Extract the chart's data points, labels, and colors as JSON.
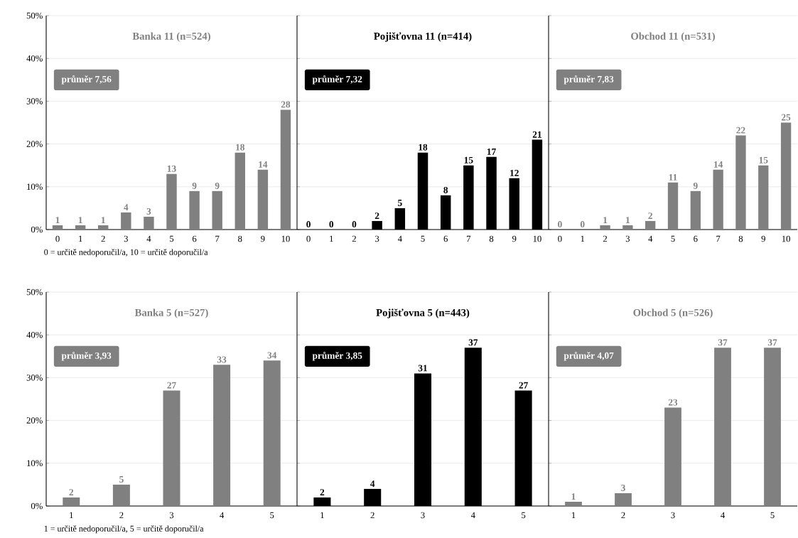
{
  "chart_data": [
    {
      "type": "bar",
      "title": "Banka 11 (n=524)",
      "categories": [
        "0",
        "1",
        "2",
        "3",
        "4",
        "5",
        "6",
        "7",
        "8",
        "9",
        "10"
      ],
      "color": "#808080",
      "values": [
        1,
        1,
        1,
        4,
        3,
        13,
        9,
        9,
        18,
        14,
        28
      ],
      "value_labels": [
        "1",
        "1",
        "1",
        "4",
        "3",
        "13",
        "9",
        "9",
        "18",
        "14",
        "28"
      ],
      "ylim": [
        0,
        50
      ],
      "yticks": [
        {
          "value": 0,
          "label": "0%"
        },
        {
          "value": 10,
          "label": "10%"
        },
        {
          "value": 20,
          "label": "20%"
        },
        {
          "value": 30,
          "label": "30%"
        },
        {
          "value": 40,
          "label": "40%"
        },
        {
          "value": 50,
          "label": "50%"
        }
      ],
      "grid": "y",
      "annotations": [
        "průměr 7,56",
        "0 = určitě nedoporučil/a, 10 = určitě doporučil/a"
      ]
    },
    {
      "type": "bar",
      "title": "Pojišťovna 11 (n=414)",
      "categories": [
        "0",
        "1",
        "2",
        "3",
        "4",
        "5",
        "6",
        "7",
        "8",
        "9",
        "10"
      ],
      "color": "#000000",
      "values": [
        0,
        0,
        0,
        2,
        5,
        18,
        8,
        15,
        17,
        12,
        21
      ],
      "value_labels": [
        "0",
        "0",
        "0",
        "2",
        "5",
        "18",
        "8",
        "15",
        "17",
        "12",
        "21"
      ],
      "ylim": [
        0,
        50
      ],
      "yticks": [
        {
          "value": 0,
          "label": null
        },
        {
          "value": 10,
          "label": null
        },
        {
          "value": 20,
          "label": null
        },
        {
          "value": 30,
          "label": null
        },
        {
          "value": 40,
          "label": null
        },
        {
          "value": 50,
          "label": null
        }
      ],
      "grid": "y",
      "tick_labels": "x",
      "annotations": [
        "průměr 7,32"
      ]
    },
    {
      "type": "bar",
      "title": "Obchod 11 (n=531)",
      "categories": [
        "0",
        "1",
        "2",
        "3",
        "4",
        "5",
        "6",
        "7",
        "8",
        "9",
        "10"
      ],
      "color": "#808080",
      "values": [
        0,
        0,
        1,
        1,
        2,
        11,
        9,
        14,
        22,
        15,
        25
      ],
      "value_labels": [
        "0",
        "0",
        "1",
        "1",
        "2",
        "11",
        "9",
        "14",
        "22",
        "15",
        "25"
      ],
      "ylim": [
        0,
        50
      ],
      "yticks": [
        {
          "value": 0,
          "label": null
        },
        {
          "value": 10,
          "label": null
        },
        {
          "value": 20,
          "label": null
        },
        {
          "value": 30,
          "label": null
        },
        {
          "value": 40,
          "label": null
        },
        {
          "value": 50,
          "label": null
        }
      ],
      "grid": "y",
      "tick_labels": "x",
      "annotations": [
        "průměr 7,83"
      ]
    },
    {
      "type": "bar",
      "title": "Banka 5 (n=527)",
      "categories": [
        "1",
        "2",
        "3",
        "4",
        "5"
      ],
      "color": "#808080",
      "values": [
        2,
        5,
        27,
        33,
        34
      ],
      "value_labels": [
        "2",
        "5",
        "27",
        "33",
        "34"
      ],
      "ylim": [
        0,
        50
      ],
      "yticks": [
        {
          "value": 0,
          "label": "0%"
        },
        {
          "value": 10,
          "label": "10%"
        },
        {
          "value": 20,
          "label": "20%"
        },
        {
          "value": 30,
          "label": "30%"
        },
        {
          "value": 40,
          "label": "40%"
        },
        {
          "value": 50,
          "label": "50%"
        }
      ],
      "grid": "y",
      "annotations": [
        "průměr 3,93",
        "1 = určitě nedoporučil/a, 5 = určitě doporučil/a"
      ]
    },
    {
      "type": "bar",
      "title": "Pojišťovna 5 (n=443)",
      "categories": [
        "1",
        "2",
        "3",
        "4",
        "5"
      ],
      "color": "#000000",
      "values": [
        2,
        4,
        31,
        37,
        27
      ],
      "value_labels": [
        "2",
        "4",
        "31",
        "37",
        "27"
      ],
      "ylim": [
        0,
        50
      ],
      "yticks": [
        {
          "value": 0,
          "label": null
        },
        {
          "value": 10,
          "label": null
        },
        {
          "value": 20,
          "label": null
        },
        {
          "value": 30,
          "label": null
        },
        {
          "value": 40,
          "label": null
        },
        {
          "value": 50,
          "label": null
        }
      ],
      "grid": "y",
      "tick_labels": "x",
      "annotations": [
        "průměr 3,85"
      ]
    },
    {
      "type": "bar",
      "title": "Obchod 5 (n=526)",
      "categories": [
        "1",
        "2",
        "3",
        "4",
        "5"
      ],
      "color": "#808080",
      "values": [
        1,
        3,
        23,
        37,
        37
      ],
      "value_labels": [
        "1",
        "3",
        "23",
        "37",
        "37"
      ],
      "ylim": [
        0,
        50
      ],
      "yticks": [
        {
          "value": 0,
          "label": null
        },
        {
          "value": 10,
          "label": null
        },
        {
          "value": 20,
          "label": null
        },
        {
          "value": 30,
          "label": null
        },
        {
          "value": 40,
          "label": null
        },
        {
          "value": 50,
          "label": null
        }
      ],
      "grid": "y",
      "tick_labels": "x",
      "annotations": [
        "průměr 4,07"
      ]
    }
  ]
}
